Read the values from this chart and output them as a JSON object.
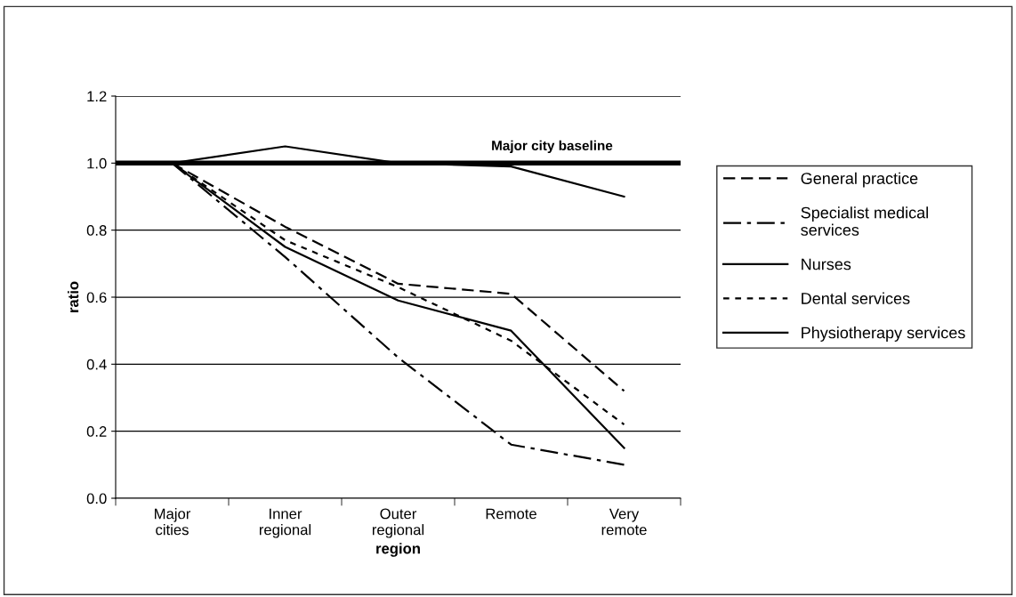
{
  "chart_data": {
    "type": "line",
    "xlabel": "region",
    "ylabel": "ratio",
    "categories": [
      "Major\ncities",
      "Inner\nregional",
      "Outer\nregional",
      "Remote",
      "Very\nremote"
    ],
    "series": [
      {
        "name": "General practice",
        "color": "#000000",
        "line_style": "dashed",
        "values": [
          1.0,
          0.81,
          0.64,
          0.61,
          0.32
        ]
      },
      {
        "name": "Specialist medical\nservices",
        "color": "#000000",
        "line_style": "dashdot",
        "values": [
          1.0,
          0.72,
          0.42,
          0.16,
          0.1
        ]
      },
      {
        "name": "Nurses",
        "color": "#000000",
        "line_style": "solid",
        "values": [
          1.0,
          1.05,
          1.0,
          0.99,
          0.9
        ]
      },
      {
        "name": "Dental services",
        "color": "#000000",
        "line_style": "dotted",
        "values": [
          1.0,
          0.77,
          0.63,
          0.47,
          0.22
        ]
      },
      {
        "name": "Physiotherapy services",
        "color": "#000000",
        "line_style": "solid",
        "values": [
          1.0,
          0.75,
          0.59,
          0.5,
          0.15
        ]
      }
    ],
    "ylim": [
      0,
      1.2
    ],
    "yticks": [
      {
        "value": 0,
        "label": "0.0"
      },
      {
        "value": 0.2,
        "label": "0.2"
      },
      {
        "value": 0.4,
        "label": "0.4"
      },
      {
        "value": 0.6,
        "label": "0.6"
      },
      {
        "value": 0.8,
        "label": "0.8"
      },
      {
        "value": 1.0,
        "label": "1.0"
      },
      {
        "value": 1.2,
        "label": "1.2"
      }
    ],
    "ref_lines": [
      {
        "axis": "y",
        "value": 1.0,
        "label": "Major city baseline",
        "color": "#000000"
      }
    ],
    "grid": "y",
    "legend": "right",
    "marker": "none"
  }
}
